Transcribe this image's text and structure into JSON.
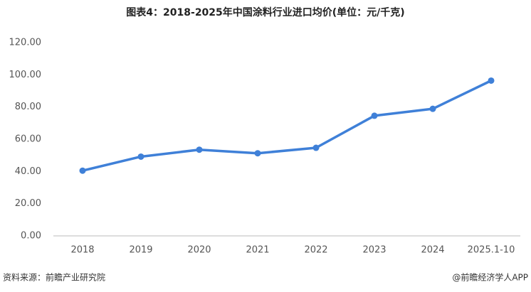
{
  "chart_data": {
    "type": "line",
    "title": "图表4：2018-2025年中国涂料行业进口均价(单位：元/千克)",
    "categories": [
      "2018",
      "2019",
      "2020",
      "2021",
      "2022",
      "2023",
      "2024",
      "2025.1-10"
    ],
    "series": [
      {
        "name": "进口均价",
        "color": "#3f80d8",
        "values": [
          40.5,
          49.2,
          53.5,
          51.3,
          54.7,
          74.6,
          78.9,
          96.4
        ]
      }
    ],
    "ylim": [
      0,
      120
    ],
    "yticks": [
      {
        "value": 0,
        "label": "0.00"
      },
      {
        "value": 20,
        "label": "20.00"
      },
      {
        "value": 40,
        "label": "40.00"
      },
      {
        "value": 60,
        "label": "60.00"
      },
      {
        "value": 80,
        "label": "80.00"
      },
      {
        "value": 100,
        "label": "100.00"
      },
      {
        "value": 120,
        "label": "120.00"
      }
    ],
    "grid": false,
    "source": "资料来源：前瞻产业研究院",
    "credit": "@前瞻经济学人APP"
  }
}
